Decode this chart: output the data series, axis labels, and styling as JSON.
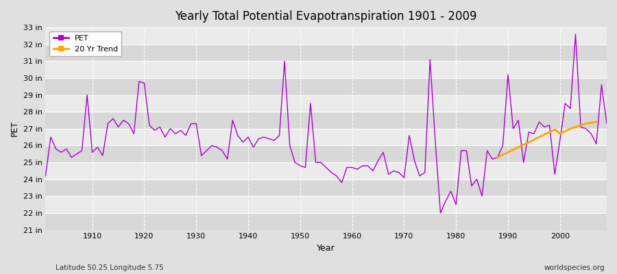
{
  "title": "Yearly Total Potential Evapotranspiration 1901 - 2009",
  "xlabel": "Year",
  "ylabel": "PET",
  "subtitle_left": "Latitude 50.25 Longitude 5.75",
  "subtitle_right": "worldspecies.org",
  "ylim": [
    21,
    33
  ],
  "ytick_labels": [
    "21 in",
    "22 in",
    "23 in",
    "24 in",
    "25 in",
    "26 in",
    "27 in",
    "28 in",
    "29 in",
    "30 in",
    "31 in",
    "32 in",
    "33 in"
  ],
  "ytick_values": [
    21,
    22,
    23,
    24,
    25,
    26,
    27,
    28,
    29,
    30,
    31,
    32,
    33
  ],
  "pet_color": "#aa00cc",
  "trend_color": "#ffa500",
  "bg_color": "#e0e0e0",
  "plot_bg_color_light": "#ebebeb",
  "plot_bg_color_dark": "#d8d8d8",
  "grid_color": "#ffffff",
  "years": [
    1901,
    1902,
    1903,
    1904,
    1905,
    1906,
    1907,
    1908,
    1909,
    1910,
    1911,
    1912,
    1913,
    1914,
    1915,
    1916,
    1917,
    1918,
    1919,
    1920,
    1921,
    1922,
    1923,
    1924,
    1925,
    1926,
    1927,
    1928,
    1929,
    1930,
    1931,
    1932,
    1933,
    1934,
    1935,
    1936,
    1937,
    1938,
    1939,
    1940,
    1941,
    1942,
    1943,
    1944,
    1945,
    1946,
    1947,
    1948,
    1949,
    1950,
    1951,
    1952,
    1953,
    1954,
    1955,
    1956,
    1957,
    1958,
    1959,
    1960,
    1961,
    1962,
    1963,
    1964,
    1965,
    1966,
    1967,
    1968,
    1969,
    1970,
    1971,
    1972,
    1973,
    1974,
    1975,
    1976,
    1977,
    1978,
    1979,
    1980,
    1981,
    1982,
    1983,
    1984,
    1985,
    1986,
    1987,
    1988,
    1989,
    1990,
    1991,
    1992,
    1993,
    1994,
    1995,
    1996,
    1997,
    1998,
    1999,
    2000,
    2001,
    2002,
    2003,
    2004,
    2005,
    2006,
    2007,
    2008,
    2009
  ],
  "pet_values": [
    24.2,
    26.5,
    25.8,
    25.6,
    25.8,
    25.3,
    25.5,
    25.7,
    29.0,
    25.6,
    25.9,
    25.4,
    27.3,
    27.6,
    27.1,
    27.5,
    27.3,
    26.7,
    29.8,
    29.7,
    27.2,
    26.9,
    27.1,
    26.5,
    27.0,
    26.7,
    26.9,
    26.6,
    27.3,
    27.3,
    25.4,
    25.7,
    26.0,
    25.9,
    25.7,
    25.2,
    27.5,
    26.6,
    26.2,
    26.5,
    25.9,
    26.4,
    26.5,
    26.4,
    26.3,
    26.6,
    31.0,
    26.0,
    25.0,
    24.8,
    24.7,
    28.5,
    25.0,
    25.0,
    24.7,
    24.4,
    24.2,
    23.8,
    24.7,
    24.7,
    24.6,
    24.8,
    24.8,
    24.5,
    25.1,
    25.6,
    24.3,
    24.5,
    24.4,
    24.1,
    26.6,
    25.1,
    24.2,
    24.4,
    31.1,
    26.3,
    22.0,
    22.7,
    23.3,
    22.5,
    25.7,
    25.7,
    23.6,
    24.0,
    23.0,
    25.7,
    25.2,
    25.3,
    26.0,
    30.2,
    27.0,
    27.5,
    25.0,
    26.8,
    26.7,
    27.4,
    27.1,
    27.2,
    24.3,
    26.3,
    28.5,
    28.2,
    32.6,
    27.1,
    27.0,
    26.7,
    26.1,
    29.6,
    27.3
  ],
  "trend_years": [
    1988,
    1989,
    1990,
    1991,
    1992,
    1993,
    1994,
    1995,
    1996,
    1997,
    1998,
    1999,
    2000,
    2001,
    2002,
    2003,
    2004,
    2005,
    2006,
    2007
  ],
  "trend_values": [
    25.3,
    25.45,
    25.6,
    25.75,
    25.9,
    26.05,
    26.2,
    26.35,
    26.5,
    26.65,
    26.8,
    26.95,
    26.7,
    26.85,
    27.0,
    27.1,
    27.2,
    27.3,
    27.35,
    27.4
  ],
  "xtick_years": [
    1910,
    1920,
    1930,
    1940,
    1950,
    1960,
    1970,
    1980,
    1990,
    2000
  ]
}
